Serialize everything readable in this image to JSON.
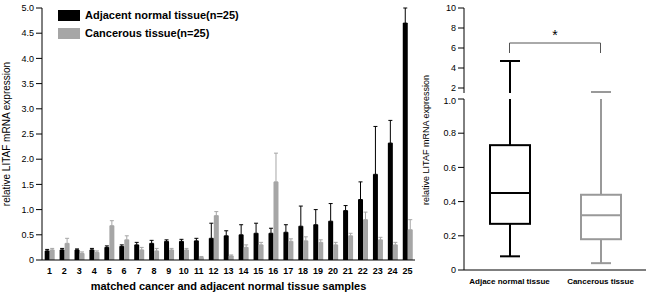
{
  "chart_data": [
    {
      "type": "bar",
      "x_label": "matched cancer and adjacent normal tissue samples",
      "y_label": "relative LITAF mRNA expression",
      "categories": [
        "1",
        "2",
        "3",
        "4",
        "5",
        "6",
        "7",
        "8",
        "9",
        "10",
        "11",
        "12",
        "13",
        "14",
        "15",
        "16",
        "17",
        "18",
        "19",
        "20",
        "21",
        "22",
        "23",
        "24",
        "25"
      ],
      "series": [
        {
          "name": "Adjacent normal tissue(n=25)",
          "color": "#000000",
          "values": [
            0.18,
            0.2,
            0.2,
            0.2,
            0.25,
            0.27,
            0.3,
            0.33,
            0.37,
            0.37,
            0.38,
            0.43,
            0.48,
            0.5,
            0.53,
            0.53,
            0.55,
            0.67,
            0.7,
            0.77,
            0.98,
            1.2,
            1.7,
            2.32,
            4.7
          ],
          "errors": [
            0.03,
            0.03,
            0.02,
            0.03,
            0.03,
            0.03,
            0.05,
            0.06,
            0.03,
            0.04,
            0.05,
            0.3,
            0.1,
            0.2,
            0.2,
            0.1,
            0.15,
            0.4,
            0.3,
            0.35,
            0.1,
            0.35,
            0.95,
            0.45,
            0.3
          ]
        },
        {
          "name": "Cancerous tissue(n=25)",
          "color": "#a6a6a6",
          "values": [
            0.2,
            0.33,
            0.13,
            0.15,
            0.68,
            0.4,
            0.2,
            0.18,
            0.2,
            0.2,
            0.05,
            0.88,
            0.08,
            0.25,
            0.3,
            1.55,
            0.37,
            0.38,
            0.35,
            0.3,
            0.48,
            0.8,
            0.4,
            0.3,
            0.6
          ],
          "errors": [
            0.03,
            0.1,
            0.03,
            0.03,
            0.1,
            0.08,
            0.05,
            0.05,
            0.03,
            0.03,
            0.02,
            0.08,
            0.02,
            0.05,
            0.05,
            0.57,
            0.05,
            0.08,
            0.05,
            0.05,
            0.05,
            0.15,
            0.05,
            0.05,
            0.2
          ]
        }
      ],
      "ylim": [
        0,
        5
      ],
      "yticks": [
        0,
        0.5,
        {
          "value": 1,
          "label": "1.0"
        },
        1.5,
        {
          "value": 2,
          "label": "2.0"
        },
        2.5,
        {
          "value": 3,
          "label": "3.0"
        },
        3.5,
        {
          "value": 4,
          "label": "4.0"
        },
        4.5,
        {
          "value": 5,
          "label": "5.0"
        }
      ],
      "legend": "upper left",
      "grid": false
    },
    {
      "type": "box",
      "y_label": "relative LITAF mRNA expression",
      "categories": [
        "Adjace normal tissue",
        "Cancerous tissue"
      ],
      "colors": [
        "#000000",
        "#999999"
      ],
      "boxes": [
        {
          "min": 0.08,
          "q1": 0.27,
          "median": 0.45,
          "q3": 0.73,
          "max": 4.7
        },
        {
          "min": 0.04,
          "q1": 0.18,
          "median": 0.32,
          "q3": 0.44,
          "max": 1.6
        }
      ],
      "panels": [
        {
          "ylim": [
            1.5,
            10
          ],
          "yticks": [
            2,
            4,
            6,
            8,
            10
          ]
        },
        {
          "ylim": [
            0,
            1
          ],
          "yticks": [
            0,
            0.2,
            0.4,
            0.6,
            0.8,
            {
              "value": 1,
              "label": "1.0"
            }
          ]
        }
      ],
      "annotation": {
        "text": "*",
        "y": 6.5,
        "y_bottom": 5.5
      },
      "grid": false
    }
  ]
}
